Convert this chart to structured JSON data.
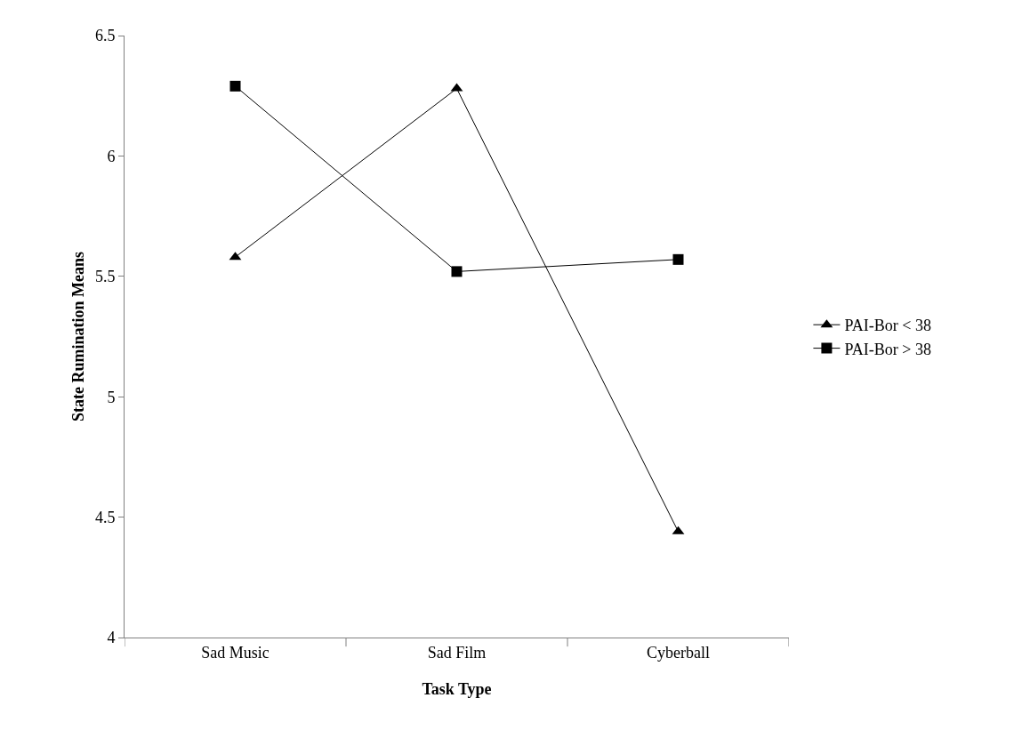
{
  "chart_data": {
    "type": "line",
    "xlabel": "Task Type",
    "ylabel": "State Rumination Means",
    "categories": [
      "Sad Music",
      "Sad Film",
      "Cyberball"
    ],
    "series": [
      {
        "name": "PAI-Bor < 38",
        "color": "#000000",
        "marker": "triangle",
        "values": [
          5.58,
          6.28,
          4.44
        ]
      },
      {
        "name": "PAI-Bor > 38",
        "color": "#000000",
        "marker": "square",
        "values": [
          6.29,
          5.52,
          5.57
        ]
      }
    ],
    "ylim": [
      4,
      6.5
    ],
    "yticks": [
      4,
      4.5,
      5,
      5.5,
      6,
      6.5
    ],
    "grid": false,
    "legend": "right",
    "line_style": "solid"
  }
}
